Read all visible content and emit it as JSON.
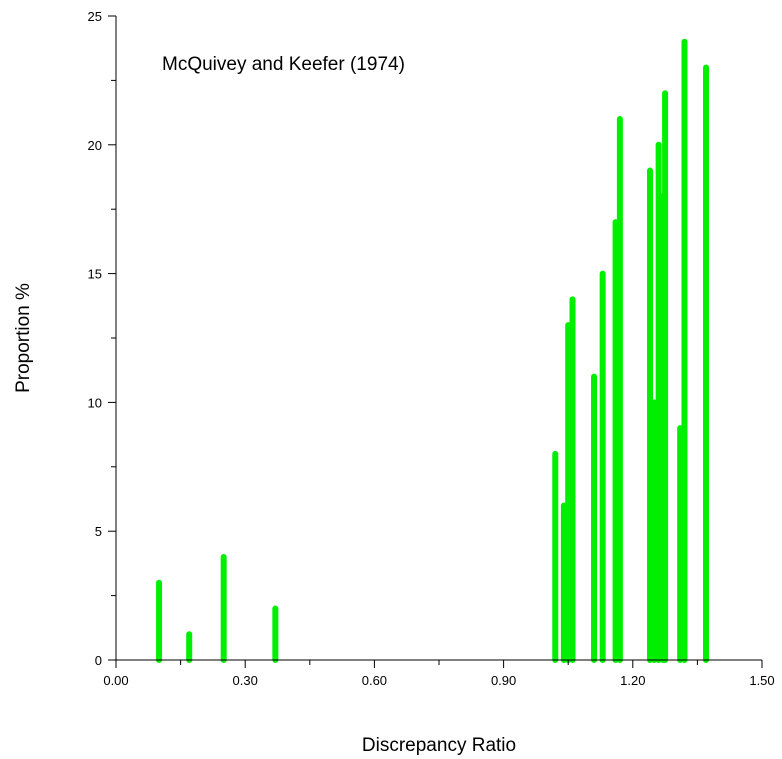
{
  "chart_data": {
    "type": "bar",
    "annotation": "McQuivey and Keefer (1974)",
    "xlabel": "Discrepancy Ratio",
    "ylabel": "Proportion %",
    "xlim": [
      0,
      1.5
    ],
    "ylim": [
      0,
      25
    ],
    "x_ticks": [
      "0.00",
      "0.30",
      "0.60",
      "0.90",
      "1.20",
      "1.50"
    ],
    "y_ticks": [
      "0",
      "5",
      "10",
      "15",
      "20",
      "25"
    ],
    "x_tick_values": [
      0,
      0.3,
      0.6,
      0.9,
      1.2,
      1.5
    ],
    "y_tick_values": [
      0,
      5,
      10,
      15,
      20,
      25
    ],
    "x_minor_tick_values": [
      0.15,
      0.45,
      0.75,
      1.05,
      1.35
    ],
    "y_minor_tick_values": [
      2.5,
      7.5,
      12.5,
      17.5,
      22.5
    ],
    "bar_color": "#00ee00",
    "grid": false,
    "points": [
      {
        "x": 0.1,
        "y": 3
      },
      {
        "x": 0.17,
        "y": 1
      },
      {
        "x": 0.25,
        "y": 4
      },
      {
        "x": 0.37,
        "y": 2
      },
      {
        "x": 1.02,
        "y": 8
      },
      {
        "x": 1.04,
        "y": 6
      },
      {
        "x": 1.05,
        "y": 13
      },
      {
        "x": 1.06,
        "y": 14
      },
      {
        "x": 1.11,
        "y": 11
      },
      {
        "x": 1.13,
        "y": 15
      },
      {
        "x": 1.16,
        "y": 17
      },
      {
        "x": 1.17,
        "y": 21
      },
      {
        "x": 1.24,
        "y": 19
      },
      {
        "x": 1.25,
        "y": 10
      },
      {
        "x": 1.26,
        "y": 20
      },
      {
        "x": 1.27,
        "y": 18
      },
      {
        "x": 1.275,
        "y": 22
      },
      {
        "x": 1.31,
        "y": 9
      },
      {
        "x": 1.32,
        "y": 24
      },
      {
        "x": 1.37,
        "y": 23
      }
    ]
  }
}
